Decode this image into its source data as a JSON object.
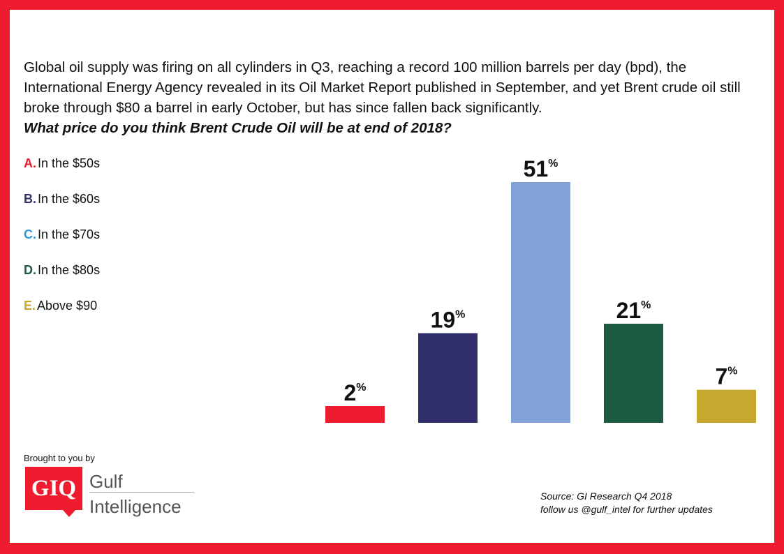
{
  "intro": {
    "text": "Global oil supply was firing on all cylinders in Q3, reaching a record 100 million barrels per day (bpd), the International Energy Agency revealed in its Oil Market Report published in September, and yet Brent crude oil still broke through $80 a barrel in early October, but has since fallen back significantly.",
    "question": "What price do you think Brent Crude Oil will be at end of 2018?"
  },
  "legend": [
    {
      "letter": "A.",
      "label": "In the $50s",
      "color": "#ee1c2e"
    },
    {
      "letter": "B.",
      "label": "In the $60s",
      "color": "#31306a"
    },
    {
      "letter": "C.",
      "label": "In the $70s",
      "color": "#2b9bd6"
    },
    {
      "letter": "D.",
      "label": "In the $80s",
      "color": "#1c5a42"
    },
    {
      "letter": "E.",
      "label": "Above $90",
      "color": "#c7a82f"
    }
  ],
  "chart_data": {
    "type": "bar",
    "categories": [
      "A.",
      "B.",
      "C.",
      "D.",
      "E."
    ],
    "values": [
      2,
      19,
      51,
      21,
      7
    ],
    "data_labels": [
      "2",
      "19",
      "51",
      "21",
      "7"
    ],
    "unit_suffix": "%",
    "colors": [
      "#ee1c2e",
      "#31306a",
      "#80a2d6",
      "#1c5a42",
      "#c7a82f"
    ],
    "title": "",
    "xlabel": "",
    "ylabel": "",
    "ylim": [
      0,
      51
    ],
    "grid": false
  },
  "credit": {
    "text": "Brought to you by",
    "logo_mark": "GIQ",
    "logo_line1": "Gulf",
    "logo_line2": "Intelligence"
  },
  "source": {
    "line1": "Source: GI Research Q4 2018",
    "line2": "follow us @gulf_intel for further updates"
  }
}
